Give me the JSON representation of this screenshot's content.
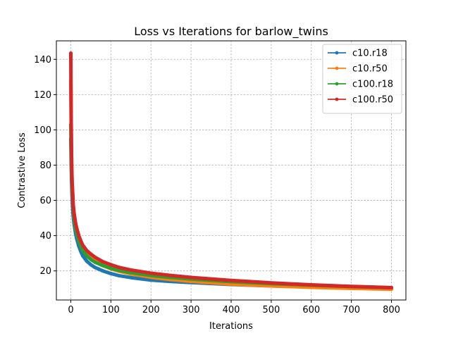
{
  "chart_data": {
    "type": "line",
    "title": "Loss vs Iterations for barlow_twins",
    "xlabel": "Iterations",
    "ylabel": "Contrastive Loss",
    "xlim": [
      -36,
      836
    ],
    "ylim": [
      3.5,
      150.5
    ],
    "xticks": [
      0,
      100,
      200,
      300,
      400,
      500,
      600,
      700,
      800
    ],
    "yticks": [
      20,
      40,
      60,
      80,
      100,
      120,
      140
    ],
    "grid": true,
    "legend_position": "top-right",
    "x_points": [
      0,
      1,
      2,
      3,
      4,
      5,
      6,
      8,
      10,
      12,
      15,
      20,
      25,
      30,
      40,
      50,
      60,
      80,
      100,
      120,
      150,
      200,
      250,
      300,
      400,
      500,
      600,
      700,
      800
    ],
    "series": [
      {
        "name": "c10.r18",
        "color": "#1f77b4",
        "values": [
          95,
          80,
          70,
          63,
          58,
          54,
          51,
          47,
          44,
          41,
          38,
          34,
          31,
          28.5,
          25.5,
          23.5,
          22,
          20,
          18.5,
          17.3,
          16.2,
          14.8,
          14,
          13.4,
          12.3,
          11.5,
          10.9,
          10.4,
          10.0
        ]
      },
      {
        "name": "c10.r50",
        "color": "#ff7f0e",
        "values": [
          128,
          100,
          82,
          73,
          67,
          62,
          58,
          53,
          49,
          46,
          42.5,
          38,
          34.5,
          32,
          29,
          27,
          25.5,
          23,
          21.2,
          19.8,
          18.3,
          16.4,
          15.1,
          14.1,
          12.5,
          11.5,
          10.7,
          10.1,
          9.6
        ]
      },
      {
        "name": "c100.r18",
        "color": "#2ca02c",
        "values": [
          103,
          86,
          75,
          68,
          63,
          59,
          55,
          50,
          47,
          44,
          41,
          37,
          34,
          31.5,
          28.5,
          26.5,
          25,
          23,
          21.5,
          20.3,
          19,
          17.4,
          16.3,
          15.4,
          13.9,
          12.8,
          11.9,
          11.1,
          10.5
        ]
      },
      {
        "name": "c100.r50",
        "color": "#d62728",
        "values": [
          143.5,
          104,
          83,
          72,
          67,
          63,
          57,
          53,
          50,
          47,
          44,
          40,
          37,
          34.5,
          31.5,
          29.5,
          27.8,
          25.2,
          23.5,
          22,
          20.5,
          18.7,
          17.4,
          16.3,
          14.6,
          13.2,
          12.1,
          11.2,
          10.5
        ]
      }
    ]
  }
}
